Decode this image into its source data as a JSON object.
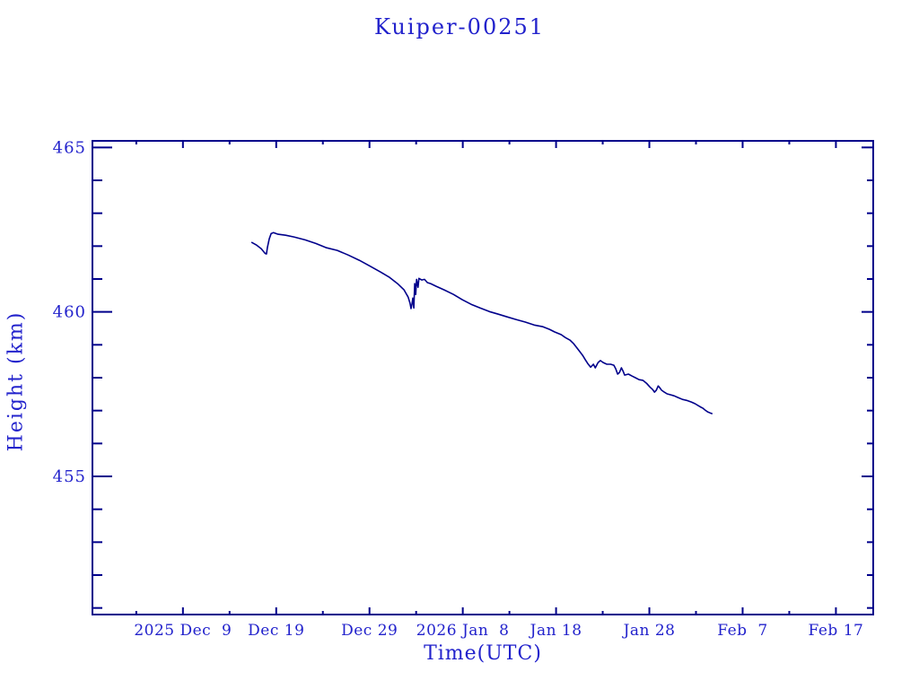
{
  "title": "Kuiper-00251",
  "colors": {
    "background": "#ffffff",
    "text": "#2222cc",
    "axis": "#00008b",
    "line": "#00008b"
  },
  "chart_data": {
    "type": "line",
    "title": "Kuiper-00251",
    "xlabel": "Time(UTC)",
    "ylabel": "Height (km)",
    "grid": false,
    "legend": false,
    "x_axis": {
      "unit": "days since 2025 Dec 9 00:00 UTC",
      "range": [
        -9.7,
        74.0
      ],
      "major_ticks": [
        0,
        10,
        20,
        30,
        40,
        50,
        60,
        70
      ],
      "major_tick_labels": [
        "2025 Dec  9",
        "Dec 19",
        "Dec 29",
        "2026 Jan  8",
        "Jan 18",
        "Jan 28",
        "Feb  7",
        "Feb 17"
      ],
      "minor_ticks": [
        -5,
        5,
        15,
        25,
        35,
        45,
        55,
        65
      ]
    },
    "y_axis": {
      "unit": "km",
      "range": [
        450.8,
        465.2
      ],
      "major_ticks": [
        455,
        460,
        465
      ],
      "major_tick_labels": [
        "455",
        "460",
        "465"
      ],
      "minor_ticks": [
        451,
        452,
        453,
        454,
        456,
        457,
        458,
        459,
        461,
        462,
        463,
        464
      ]
    },
    "series": [
      {
        "name": "height",
        "points": [
          [
            7.4,
            462.11
          ],
          [
            7.9,
            462.03
          ],
          [
            8.4,
            461.92
          ],
          [
            8.8,
            461.78
          ],
          [
            8.95,
            461.76
          ],
          [
            9.05,
            461.95
          ],
          [
            9.25,
            462.22
          ],
          [
            9.45,
            462.38
          ],
          [
            9.7,
            462.41
          ],
          [
            10.2,
            462.36
          ],
          [
            11.0,
            462.33
          ],
          [
            11.9,
            462.28
          ],
          [
            13.1,
            462.19
          ],
          [
            14.25,
            462.08
          ],
          [
            15.4,
            461.95
          ],
          [
            16.55,
            461.87
          ],
          [
            17.7,
            461.73
          ],
          [
            18.9,
            461.57
          ],
          [
            20.0,
            461.4
          ],
          [
            21.2,
            461.21
          ],
          [
            22.15,
            461.05
          ],
          [
            23.0,
            460.86
          ],
          [
            23.7,
            460.67
          ],
          [
            24.15,
            460.45
          ],
          [
            24.35,
            460.26
          ],
          [
            24.45,
            460.1
          ],
          [
            24.55,
            460.23
          ],
          [
            24.65,
            460.42
          ],
          [
            24.75,
            460.12
          ],
          [
            24.85,
            460.86
          ],
          [
            24.95,
            460.53
          ],
          [
            25.05,
            460.99
          ],
          [
            25.2,
            460.75
          ],
          [
            25.3,
            461.02
          ],
          [
            25.6,
            460.97
          ],
          [
            25.9,
            460.99
          ],
          [
            26.2,
            460.89
          ],
          [
            26.55,
            460.86
          ],
          [
            27.15,
            460.78
          ],
          [
            28.0,
            460.67
          ],
          [
            29.0,
            460.53
          ],
          [
            29.95,
            460.37
          ],
          [
            30.9,
            460.23
          ],
          [
            31.85,
            460.12
          ],
          [
            32.85,
            460.01
          ],
          [
            33.8,
            459.93
          ],
          [
            34.75,
            459.85
          ],
          [
            35.7,
            459.77
          ],
          [
            36.7,
            459.69
          ],
          [
            37.65,
            459.6
          ],
          [
            38.6,
            459.55
          ],
          [
            39.3,
            459.47
          ],
          [
            39.85,
            459.39
          ],
          [
            40.55,
            459.31
          ],
          [
            41.0,
            459.22
          ],
          [
            41.5,
            459.14
          ],
          [
            41.9,
            459.03
          ],
          [
            42.25,
            458.9
          ],
          [
            42.55,
            458.79
          ],
          [
            42.85,
            458.68
          ],
          [
            43.15,
            458.54
          ],
          [
            43.4,
            458.43
          ],
          [
            43.7,
            458.32
          ],
          [
            44.0,
            458.41
          ],
          [
            44.2,
            458.3
          ],
          [
            44.5,
            458.46
          ],
          [
            44.75,
            458.52
          ],
          [
            45.05,
            458.46
          ],
          [
            45.45,
            458.41
          ],
          [
            45.85,
            458.41
          ],
          [
            46.2,
            458.38
          ],
          [
            46.4,
            458.27
          ],
          [
            46.6,
            458.11
          ],
          [
            46.8,
            458.16
          ],
          [
            47.0,
            458.3
          ],
          [
            47.2,
            458.19
          ],
          [
            47.35,
            458.08
          ],
          [
            47.75,
            458.11
          ],
          [
            48.15,
            458.05
          ],
          [
            48.5,
            458.0
          ],
          [
            48.9,
            457.94
          ],
          [
            49.3,
            457.92
          ],
          [
            49.7,
            457.83
          ],
          [
            50.05,
            457.72
          ],
          [
            50.35,
            457.64
          ],
          [
            50.55,
            457.56
          ],
          [
            50.75,
            457.62
          ],
          [
            50.95,
            457.75
          ],
          [
            51.1,
            457.7
          ],
          [
            51.3,
            457.62
          ],
          [
            51.6,
            457.56
          ],
          [
            51.9,
            457.51
          ],
          [
            52.3,
            457.48
          ],
          [
            52.65,
            457.45
          ],
          [
            53.05,
            457.4
          ],
          [
            53.55,
            457.34
          ],
          [
            54.0,
            457.31
          ],
          [
            54.5,
            457.26
          ],
          [
            54.9,
            457.21
          ],
          [
            55.25,
            457.15
          ],
          [
            55.55,
            457.1
          ],
          [
            55.75,
            457.07
          ],
          [
            55.95,
            457.02
          ],
          [
            56.25,
            456.96
          ],
          [
            56.5,
            456.93
          ],
          [
            56.7,
            456.91
          ]
        ]
      }
    ]
  }
}
